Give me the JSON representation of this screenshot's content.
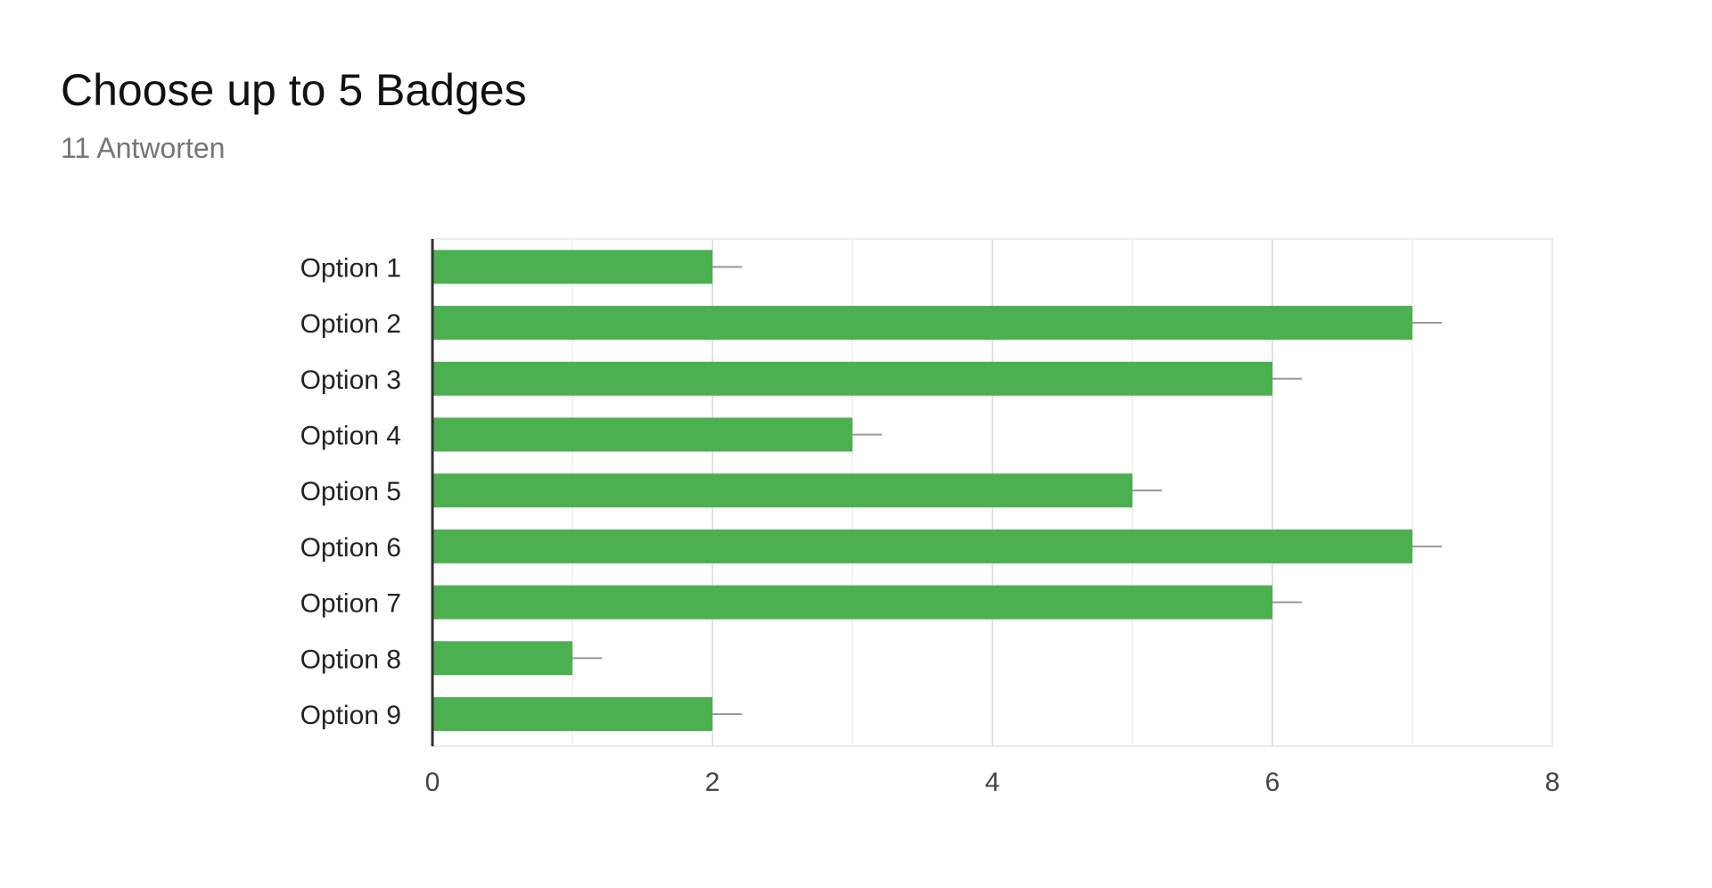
{
  "header": {
    "title": "Choose up to 5 Badges",
    "subtitle": "11 Antworten"
  },
  "colors": {
    "bar": "#4caf50",
    "error_bar": "#999999",
    "grid": "#ebebeb",
    "axis": "#333333"
  },
  "chart_data": {
    "type": "bar",
    "orientation": "horizontal",
    "title": "Choose up to 5 Badges",
    "subtitle": "11 Antworten",
    "categories": [
      "Option 1",
      "Option 2",
      "Option 3",
      "Option 4",
      "Option 5",
      "Option 6",
      "Option 7",
      "Option 8",
      "Option 9"
    ],
    "values": [
      2,
      7,
      6,
      3,
      5,
      7,
      6,
      1,
      2
    ],
    "xlim": [
      0,
      8
    ],
    "xticks": [
      0,
      2,
      4,
      6,
      8
    ],
    "grid": true,
    "error_bars": true,
    "legend": "none"
  }
}
